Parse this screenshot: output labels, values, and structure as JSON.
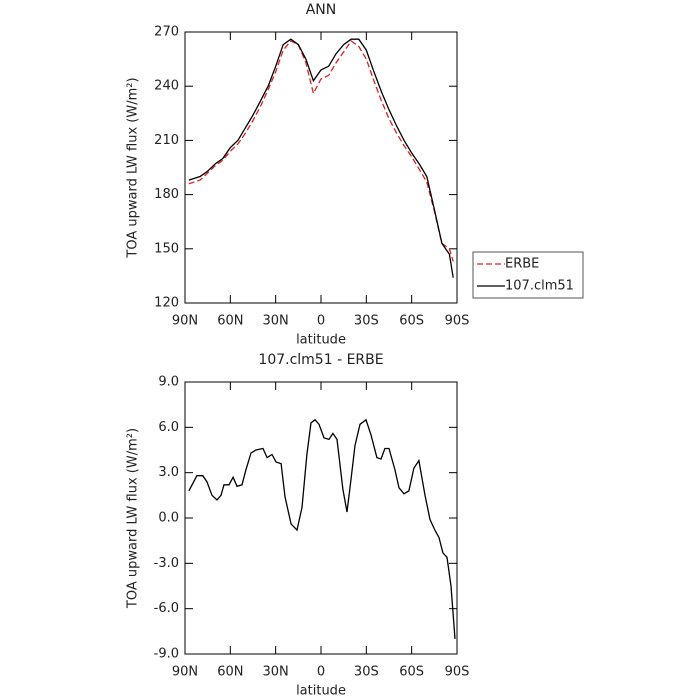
{
  "chart_data": [
    {
      "type": "line",
      "title": "ANN",
      "xlabel": "latitude",
      "ylabel": "TOA upward LW flux (W/m²)",
      "xlim": [
        90,
        -90
      ],
      "xticks": [
        {
          "value": 90,
          "label": "90N"
        },
        {
          "value": 60,
          "label": "60N"
        },
        {
          "value": 30,
          "label": "30N"
        },
        0,
        {
          "value": -30,
          "label": "30S"
        },
        {
          "value": -60,
          "label": "60S"
        },
        {
          "value": -90,
          "label": "90S"
        }
      ],
      "ylim": [
        120,
        270
      ],
      "yticks": [
        120,
        150,
        180,
        210,
        240,
        270
      ],
      "legend": "right",
      "x": [
        87.5,
        80,
        75,
        70,
        65,
        60,
        55,
        50,
        45,
        40,
        35,
        30,
        25,
        20,
        15,
        10,
        5,
        0,
        -5,
        -10,
        -15,
        -20,
        -25,
        -30,
        -35,
        -40,
        -45,
        -50,
        -55,
        -60,
        -65,
        -70,
        -75,
        -80,
        -85,
        -87.5
      ],
      "series": [
        {
          "name": "ERBE",
          "color": "#e02020",
          "linestyle": "dashed",
          "values": [
            186,
            188,
            192,
            196,
            199,
            204,
            208,
            214,
            221,
            229,
            238,
            248,
            260,
            265,
            263,
            253,
            236,
            244,
            246,
            253,
            259,
            265,
            262,
            255,
            243,
            232,
            222,
            214,
            207,
            201,
            194,
            187,
            171,
            153,
            150,
            143
          ]
        },
        {
          "name": "107.clm51",
          "color": "#000000",
          "linestyle": "solid",
          "values": [
            188,
            190,
            193,
            197,
            200,
            206,
            210,
            217,
            224,
            232,
            240,
            251,
            263,
            266,
            263,
            255,
            243,
            249,
            251,
            258,
            263,
            266,
            266,
            260,
            248,
            237,
            227,
            218,
            210,
            203,
            197,
            190,
            172,
            153,
            147,
            134
          ]
        }
      ]
    },
    {
      "type": "line",
      "title": "107.clm51 - ERBE",
      "xlabel": "latitude",
      "ylabel": "TOA upward LW flux (W/m²)",
      "xlim": [
        90,
        -90
      ],
      "xticks": [
        {
          "value": 90,
          "label": "90N"
        },
        {
          "value": 60,
          "label": "60N"
        },
        {
          "value": 30,
          "label": "30N"
        },
        0,
        {
          "value": -30,
          "label": "30S"
        },
        {
          "value": -60,
          "label": "60S"
        },
        {
          "value": -90,
          "label": "90S"
        }
      ],
      "ylim": [
        -9,
        9
      ],
      "yticks": [
        {
          "value": -9,
          "label": "-9.0"
        },
        {
          "value": -6,
          "label": "-6.0"
        },
        {
          "value": -3,
          "label": "-3.0"
        },
        {
          "value": 0,
          "label": "0.0"
        },
        {
          "value": 3,
          "label": "3.0"
        },
        {
          "value": 6,
          "label": "6.0"
        },
        {
          "value": 9,
          "label": "9.0"
        }
      ],
      "x": [
        87.4,
        82.1,
        78.2,
        75.5,
        72.1,
        68.8,
        66.2,
        64.2,
        60.9,
        58.2,
        55.6,
        52.3,
        49.6,
        46.3,
        43.0,
        38.4,
        35.7,
        32.4,
        29.7,
        26.4,
        23.8,
        19.8,
        15.9,
        12.6,
        9.3,
        6.6,
        4.0,
        1.3,
        -2.0,
        -5.3,
        -7.9,
        -10.6,
        -14.5,
        -17.2,
        -19.8,
        -22.5,
        -25.8,
        -29.8,
        -33.1,
        -37.0,
        -39.7,
        -42.3,
        -45.0,
        -48.9,
        -51.6,
        -54.9,
        -58.2,
        -61.5,
        -64.8,
        -68.8,
        -72.1,
        -75.4,
        -78.1,
        -80.7,
        -83.4,
        -86.0,
        -88.7
      ],
      "series": [
        {
          "name": "107.clm51 - ERBE",
          "color": "#000000",
          "linestyle": "solid",
          "values": [
            1.8,
            2.8,
            2.8,
            2.4,
            1.5,
            1.2,
            1.5,
            2.2,
            2.2,
            2.7,
            2.1,
            2.2,
            3.2,
            4.3,
            4.5,
            4.6,
            4.0,
            4.2,
            3.7,
            3.6,
            1.4,
            -0.4,
            -0.8,
            0.7,
            4.2,
            6.3,
            6.5,
            6.2,
            5.3,
            5.2,
            5.6,
            5.2,
            1.9,
            0.4,
            2.5,
            4.8,
            6.2,
            6.5,
            5.5,
            4.0,
            3.9,
            4.6,
            4.6,
            3.2,
            2.0,
            1.6,
            1.8,
            3.3,
            3.8,
            1.5,
            -0.1,
            -0.8,
            -1.3,
            -2.3,
            -2.6,
            -4.5,
            -8.0
          ]
        }
      ]
    }
  ]
}
